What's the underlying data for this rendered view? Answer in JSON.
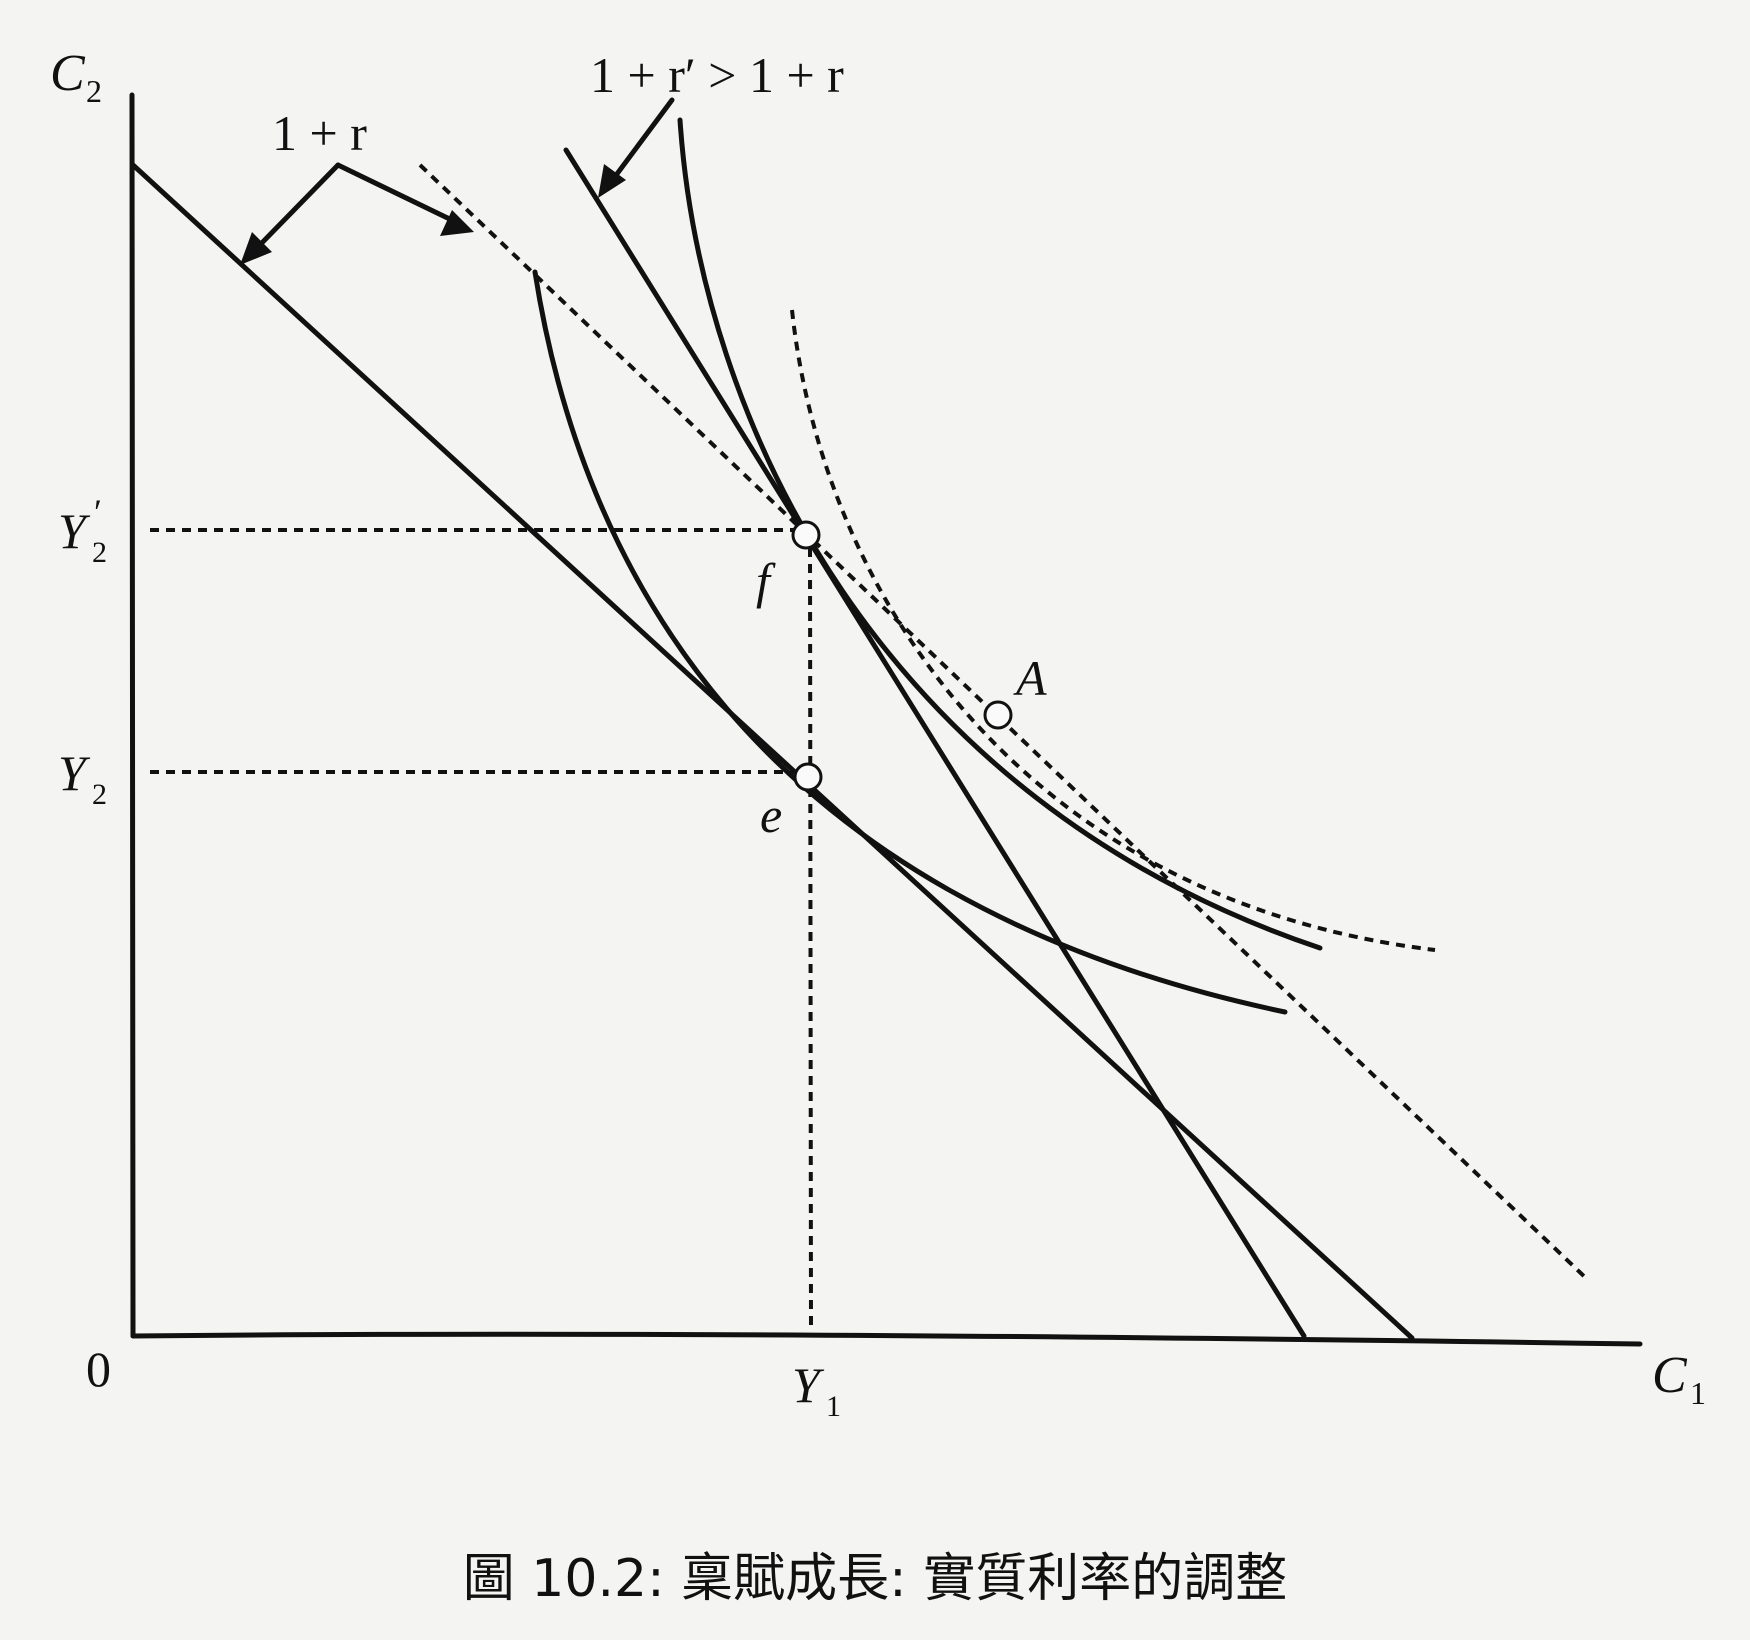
{
  "axes": {
    "y_axis_label": "C",
    "y_axis_sub": "2",
    "x_axis_label": "C",
    "x_axis_sub": "1",
    "origin": "0"
  },
  "ticks": {
    "y2_prime_label": "Y",
    "y2_prime_sub": "2",
    "y2_prime_mark": "′",
    "y2_label": "Y",
    "y2_sub": "2",
    "y1_label": "Y",
    "y1_sub": "1"
  },
  "annotations": {
    "rate_label": "1 + r",
    "rate_prime_label": "1 + r′ > 1 + r"
  },
  "points": {
    "e": "e",
    "f": "f",
    "A": "A"
  },
  "caption": "圖 10.2: 稟賦成長: 實質利率的調整"
}
